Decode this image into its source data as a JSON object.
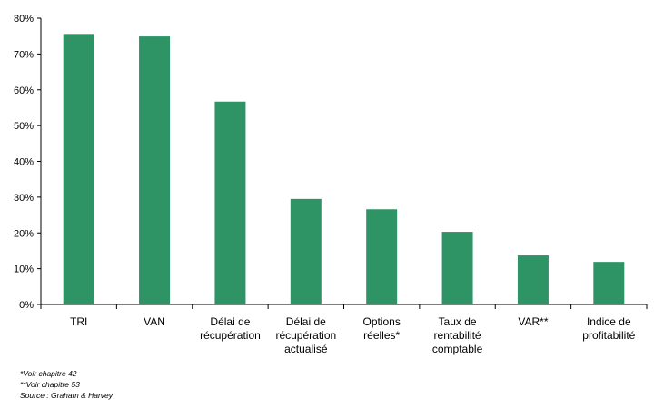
{
  "chart_data": {
    "type": "bar",
    "categories": [
      [
        "TRI"
      ],
      [
        "VAN"
      ],
      [
        "Délai de",
        "récupération"
      ],
      [
        "Délai de",
        "récupération",
        "actualisé"
      ],
      [
        "Options",
        "réelles*"
      ],
      [
        "Taux de",
        "rentabilité",
        "comptable"
      ],
      [
        "VAR**"
      ],
      [
        "Indice de",
        "profitabilité"
      ]
    ],
    "values": [
      75.6,
      74.9,
      56.7,
      29.5,
      26.6,
      20.3,
      13.7,
      11.9
    ],
    "value_unit": "%",
    "ylim": [
      0,
      80
    ],
    "yticks": [
      "0%",
      "10%",
      "20%",
      "30%",
      "40%",
      "50%",
      "60%",
      "70%",
      "80%"
    ],
    "title": "",
    "xlabel": "",
    "ylabel": "",
    "grid": false,
    "bar_color": "#2e9466"
  },
  "footnotes": [
    "*Voir chapitre 42",
    "**Voir chapitre 53",
    "Source : Graham & Harvey"
  ]
}
